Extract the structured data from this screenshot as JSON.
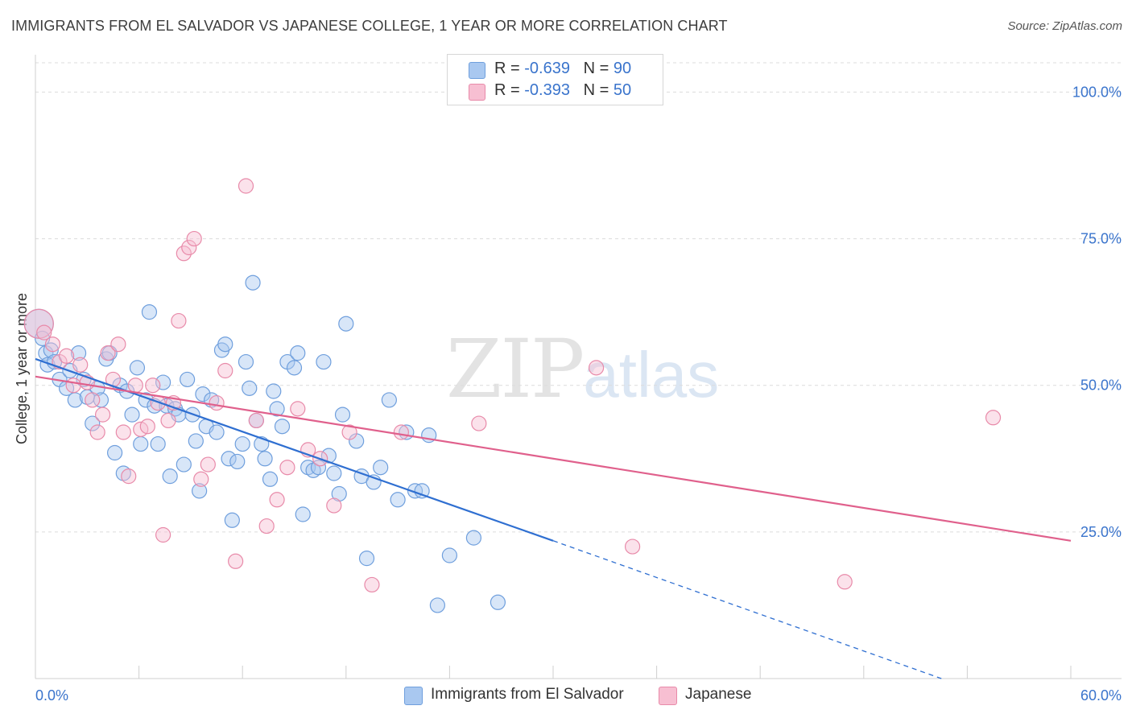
{
  "title": "IMMIGRANTS FROM EL SALVADOR VS JAPANESE COLLEGE, 1 YEAR OR MORE CORRELATION CHART",
  "source": "Source: ZipAtlas.com",
  "watermark": {
    "zip": "ZIP",
    "atlas": "atlas"
  },
  "legend": {
    "rows": [
      {
        "r_label": "R = ",
        "r_value": "-0.639",
        "n_label": "N = ",
        "n_value": "90",
        "color": "#a9c8f0",
        "border": "#6f9fdd"
      },
      {
        "r_label": "R = ",
        "r_value": "-0.393",
        "n_label": "N = ",
        "n_value": "50",
        "color": "#f7bfd2",
        "border": "#e88aa9"
      }
    ]
  },
  "bottom_legend": [
    {
      "label": "Immigrants from El Salvador",
      "color": "#a9c8f0",
      "border": "#6f9fdd"
    },
    {
      "label": "Japanese",
      "color": "#f7bfd2",
      "border": "#e88aa9"
    }
  ],
  "chart_data": {
    "type": "scatter",
    "title": "IMMIGRANTS FROM EL SALVADOR VS JAPANESE COLLEGE, 1 YEAR OR MORE CORRELATION CHART",
    "xlabel": "",
    "ylabel": "College, 1 year or more",
    "xlim": [
      0,
      60
    ],
    "ylim": [
      0,
      105
    ],
    "x_tick_labels": [
      "0.0%",
      "60.0%"
    ],
    "y_ticks": [
      25,
      50,
      75,
      100
    ],
    "y_tick_labels": [
      "25.0%",
      "50.0%",
      "75.0%",
      "100.0%"
    ],
    "grid": true,
    "legend_position": "top-center",
    "series": [
      {
        "name": "Immigrants from El Salvador",
        "color": "#6f9fdd",
        "fill": "#a9c8f0",
        "r": -0.639,
        "n": 90,
        "trend": {
          "x0": 0,
          "y0": 54.5,
          "x1": 30,
          "y1": 23.5,
          "dashed_to_x": 52.5,
          "dashed_to_y": 0
        },
        "points": [
          [
            0.2,
            60.5,
            18
          ],
          [
            0.4,
            58,
            9
          ],
          [
            0.6,
            55.5,
            9
          ],
          [
            0.7,
            53.5,
            9
          ],
          [
            0.9,
            56,
            9
          ],
          [
            1.1,
            54,
            9
          ],
          [
            1.4,
            51,
            9
          ],
          [
            1.8,
            49.5,
            9
          ],
          [
            2.0,
            52.5,
            9
          ],
          [
            2.3,
            47.5,
            9
          ],
          [
            2.5,
            55.5,
            9
          ],
          [
            2.8,
            51,
            9
          ],
          [
            3.0,
            48,
            9
          ],
          [
            3.3,
            43.5,
            9
          ],
          [
            3.6,
            49.5,
            9
          ],
          [
            3.8,
            47.5,
            9
          ],
          [
            4.1,
            54.5,
            9
          ],
          [
            4.3,
            55.5,
            9
          ],
          [
            4.6,
            38.5,
            9
          ],
          [
            4.9,
            50,
            9
          ],
          [
            5.1,
            35,
            9
          ],
          [
            5.3,
            49,
            9
          ],
          [
            5.6,
            45,
            9
          ],
          [
            5.9,
            53,
            9
          ],
          [
            6.1,
            40,
            9
          ],
          [
            6.4,
            47.5,
            9
          ],
          [
            6.6,
            62.5,
            9
          ],
          [
            6.9,
            46.5,
            9
          ],
          [
            7.1,
            40,
            9
          ],
          [
            7.4,
            50.5,
            9
          ],
          [
            7.6,
            46.5,
            9
          ],
          [
            7.8,
            34.5,
            9
          ],
          [
            8.1,
            46,
            9
          ],
          [
            8.3,
            45,
            9
          ],
          [
            8.6,
            36.5,
            9
          ],
          [
            8.8,
            51,
            9
          ],
          [
            9.1,
            45,
            9
          ],
          [
            9.3,
            40.5,
            9
          ],
          [
            9.5,
            32,
            9
          ],
          [
            9.7,
            48.5,
            9
          ],
          [
            9.9,
            43,
            9
          ],
          [
            10.2,
            47.5,
            9
          ],
          [
            10.5,
            42,
            9
          ],
          [
            10.8,
            56,
            9
          ],
          [
            11.0,
            57,
            9
          ],
          [
            11.2,
            37.5,
            9
          ],
          [
            11.4,
            27,
            9
          ],
          [
            11.7,
            37,
            9
          ],
          [
            12.0,
            40,
            9
          ],
          [
            12.2,
            54,
            9
          ],
          [
            12.4,
            49.5,
            9
          ],
          [
            12.6,
            67.5,
            9
          ],
          [
            12.8,
            44,
            9
          ],
          [
            13.1,
            40,
            9
          ],
          [
            13.3,
            37.5,
            9
          ],
          [
            13.6,
            34,
            9
          ],
          [
            13.8,
            49,
            9
          ],
          [
            14.0,
            46,
            9
          ],
          [
            14.3,
            43,
            9
          ],
          [
            14.6,
            54,
            9
          ],
          [
            15.0,
            53,
            9
          ],
          [
            15.2,
            55.5,
            9
          ],
          [
            15.5,
            28,
            9
          ],
          [
            15.8,
            36,
            9
          ],
          [
            16.1,
            35.5,
            9
          ],
          [
            16.4,
            36,
            9
          ],
          [
            16.7,
            54,
            9
          ],
          [
            17.0,
            38,
            9
          ],
          [
            17.3,
            35,
            9
          ],
          [
            17.6,
            31.5,
            9
          ],
          [
            17.8,
            45,
            9
          ],
          [
            18.0,
            60.5,
            9
          ],
          [
            18.6,
            40.5,
            9
          ],
          [
            18.9,
            34.5,
            9
          ],
          [
            19.2,
            20.5,
            9
          ],
          [
            19.6,
            33.5,
            9
          ],
          [
            20.0,
            36,
            9
          ],
          [
            20.5,
            47.5,
            9
          ],
          [
            21.0,
            30.5,
            9
          ],
          [
            21.5,
            42,
            9
          ],
          [
            22.0,
            32,
            9
          ],
          [
            22.4,
            32,
            9
          ],
          [
            22.8,
            41.5,
            9
          ],
          [
            23.3,
            12.5,
            9
          ],
          [
            24.0,
            21,
            9
          ],
          [
            25.4,
            24,
            9
          ],
          [
            26.8,
            13,
            9
          ]
        ]
      },
      {
        "name": "Japanese",
        "color": "#e88aa9",
        "fill": "#f7bfd2",
        "r": -0.393,
        "n": 50,
        "trend": {
          "x0": 0,
          "y0": 51.5,
          "x1": 60,
          "y1": 23.5
        },
        "points": [
          [
            0.2,
            60.5,
            18
          ],
          [
            0.5,
            59,
            9
          ],
          [
            1.0,
            57,
            9
          ],
          [
            1.4,
            54,
            9
          ],
          [
            1.8,
            55,
            9
          ],
          [
            2.2,
            50,
            9
          ],
          [
            2.6,
            53.5,
            9
          ],
          [
            3.0,
            50.5,
            9
          ],
          [
            3.3,
            47.5,
            9
          ],
          [
            3.6,
            42,
            9
          ],
          [
            3.9,
            45,
            9
          ],
          [
            4.2,
            55.5,
            9
          ],
          [
            4.5,
            51,
            9
          ],
          [
            4.8,
            57,
            9
          ],
          [
            5.1,
            42,
            9
          ],
          [
            5.4,
            34.5,
            9
          ],
          [
            5.8,
            50,
            9
          ],
          [
            6.1,
            42.5,
            9
          ],
          [
            6.5,
            43,
            9
          ],
          [
            6.8,
            50,
            9
          ],
          [
            7.1,
            47,
            9
          ],
          [
            7.4,
            24.5,
            9
          ],
          [
            7.7,
            44,
            9
          ],
          [
            8.0,
            47,
            9
          ],
          [
            8.3,
            61,
            9
          ],
          [
            8.6,
            72.5,
            9
          ],
          [
            8.9,
            73.5,
            9
          ],
          [
            9.2,
            75,
            9
          ],
          [
            9.6,
            34,
            9
          ],
          [
            10.0,
            36.5,
            9
          ],
          [
            10.5,
            47,
            9
          ],
          [
            11.0,
            52.5,
            9
          ],
          [
            11.6,
            20,
            9
          ],
          [
            12.2,
            84,
            9
          ],
          [
            12.8,
            44,
            9
          ],
          [
            13.4,
            26,
            9
          ],
          [
            14.0,
            30.5,
            9
          ],
          [
            14.6,
            36,
            9
          ],
          [
            15.2,
            46,
            9
          ],
          [
            15.8,
            39,
            9
          ],
          [
            16.5,
            37.5,
            9
          ],
          [
            17.3,
            29.5,
            9
          ],
          [
            18.2,
            42,
            9
          ],
          [
            19.5,
            16,
            9
          ],
          [
            21.2,
            42,
            9
          ],
          [
            25.7,
            43.5,
            9
          ],
          [
            32.5,
            53,
            9
          ],
          [
            34.6,
            22.5,
            9
          ],
          [
            46.9,
            16.5,
            9
          ],
          [
            55.5,
            44.5,
            9
          ]
        ]
      }
    ]
  }
}
